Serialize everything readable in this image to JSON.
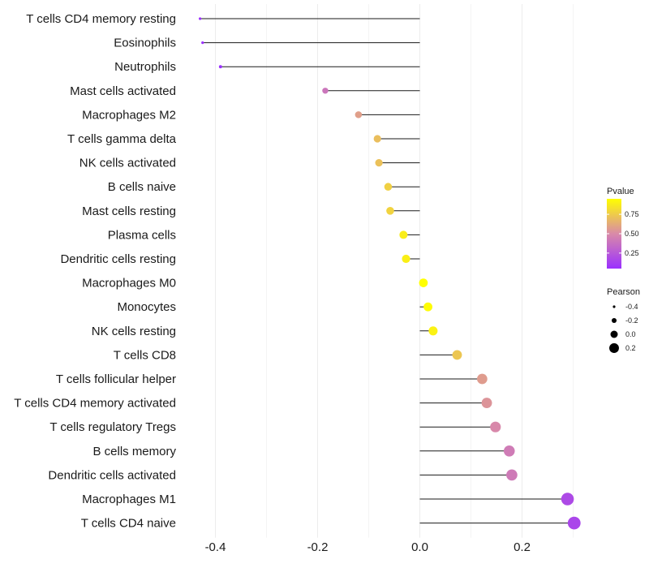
{
  "chart_data": {
    "type": "lollipop",
    "title": "",
    "xlabel": "",
    "ylabel": "",
    "xlim": [
      -0.43,
      0.3
    ],
    "xticks": [
      -0.4,
      -0.2,
      0.0,
      0.2
    ],
    "xtick_labels": [
      "-0.4",
      "-0.2",
      "0.0",
      "0.2"
    ],
    "grid": true,
    "colors": {
      "low_pvalue": "#9B30FF",
      "mid_pvalue": "#D98AA8",
      "high_pvalue": "#FFFF00",
      "stem": "#1a1a1a",
      "grid": "#ececec"
    },
    "rows": [
      {
        "cell": "T cells CD4 memory resting",
        "pearson": -0.43,
        "pvalue": 0.02
      },
      {
        "cell": "Eosinophils",
        "pearson": -0.425,
        "pvalue": 0.03
      },
      {
        "cell": "Neutrophils",
        "pearson": -0.39,
        "pvalue": 0.05
      },
      {
        "cell": "Mast cells activated",
        "pearson": -0.185,
        "pvalue": 0.4
      },
      {
        "cell": "Macrophages M2",
        "pearson": -0.12,
        "pvalue": 0.58
      },
      {
        "cell": "T cells gamma delta",
        "pearson": -0.083,
        "pvalue": 0.7
      },
      {
        "cell": "NK cells activated",
        "pearson": -0.08,
        "pvalue": 0.71
      },
      {
        "cell": "B cells naive",
        "pearson": -0.062,
        "pvalue": 0.77
      },
      {
        "cell": "Mast cells resting",
        "pearson": -0.058,
        "pvalue": 0.78
      },
      {
        "cell": "Plasma cells",
        "pearson": -0.032,
        "pvalue": 0.88
      },
      {
        "cell": "Dendritic cells resting",
        "pearson": -0.027,
        "pvalue": 0.89
      },
      {
        "cell": "Macrophages M0",
        "pearson": 0.007,
        "pvalue": 0.97
      },
      {
        "cell": "Monocytes",
        "pearson": 0.016,
        "pvalue": 0.94
      },
      {
        "cell": "NK cells resting",
        "pearson": 0.026,
        "pvalue": 0.9
      },
      {
        "cell": "T cells CD8",
        "pearson": 0.073,
        "pvalue": 0.73
      },
      {
        "cell": "T cells follicular helper",
        "pearson": 0.122,
        "pvalue": 0.57
      },
      {
        "cell": "T cells CD4 memory activated",
        "pearson": 0.131,
        "pvalue": 0.54
      },
      {
        "cell": "T cells regulatory  Tregs ",
        "pearson": 0.148,
        "pvalue": 0.49
      },
      {
        "cell": "B cells memory",
        "pearson": 0.175,
        "pvalue": 0.43
      },
      {
        "cell": "Dendritic cells activated",
        "pearson": 0.18,
        "pvalue": 0.42
      },
      {
        "cell": "Macrophages M1",
        "pearson": 0.289,
        "pvalue": 0.18
      },
      {
        "cell": "T cells CD4 naive",
        "pearson": 0.302,
        "pvalue": 0.16
      }
    ],
    "legend_pvalue": {
      "title": "Pvalue",
      "placement": "right",
      "range": [
        0.05,
        0.95
      ],
      "ticks": [
        0.75,
        0.5,
        0.25
      ],
      "tick_labels": [
        "0.75",
        "0.50",
        "0.25"
      ]
    },
    "legend_pearson": {
      "title": "Pearson",
      "placement": "right",
      "values": [
        -0.4,
        -0.2,
        0.0,
        0.2
      ],
      "labels": [
        "-0.4",
        "-0.2",
        "0.0",
        "0.2"
      ]
    }
  }
}
